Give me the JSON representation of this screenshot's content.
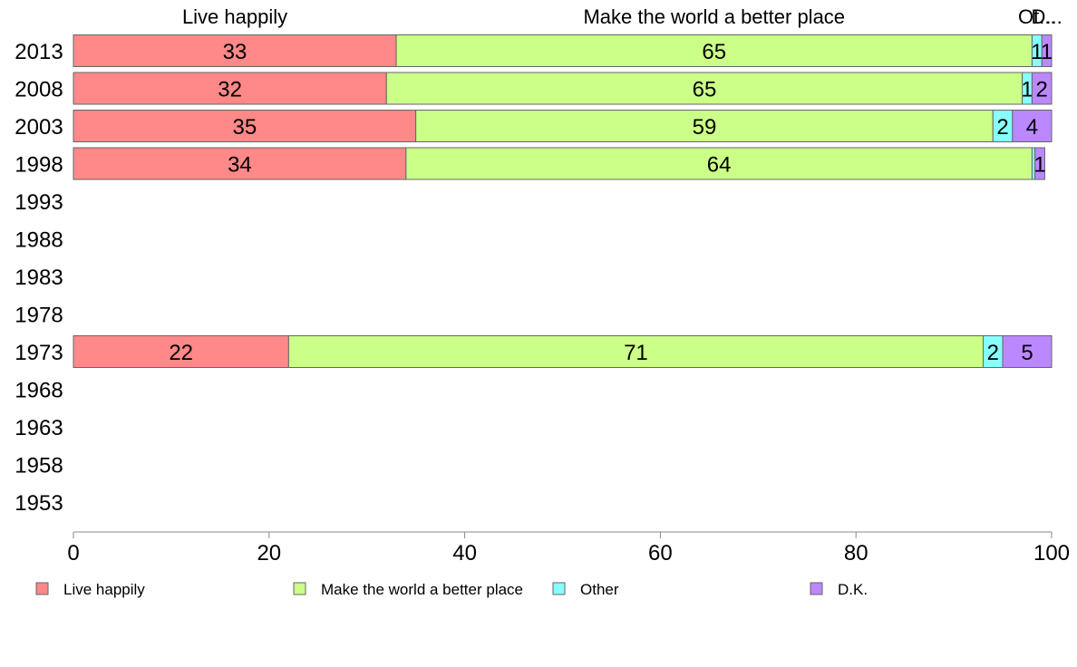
{
  "chart_data": {
    "type": "bar",
    "orientation": "horizontal",
    "stacked": true,
    "categories": [
      "2013",
      "2008",
      "2003",
      "1998",
      "1993",
      "1988",
      "1983",
      "1978",
      "1973",
      "1968",
      "1963",
      "1958",
      "1953"
    ],
    "series": [
      {
        "name": "Live happily",
        "color": "#ff8888",
        "values": [
          33,
          32,
          35,
          34,
          null,
          null,
          null,
          null,
          22,
          null,
          null,
          null,
          null
        ],
        "labels": [
          "33",
          "32",
          "35",
          "34",
          "",
          "",
          "",
          "",
          "22",
          "",
          "",
          "",
          ""
        ]
      },
      {
        "name": "Make the world a better place",
        "color": "#ccff88",
        "values": [
          65,
          65,
          59,
          64,
          null,
          null,
          null,
          null,
          71,
          null,
          null,
          null,
          null
        ],
        "labels": [
          "65",
          "65",
          "59",
          "64",
          "",
          "",
          "",
          "",
          "71",
          "",
          "",
          "",
          ""
        ]
      },
      {
        "name": "Other",
        "color": "#88ffff",
        "values": [
          1,
          1,
          2,
          0.3,
          null,
          null,
          null,
          null,
          2,
          null,
          null,
          null,
          null
        ],
        "labels": [
          "1",
          "1",
          "2",
          "",
          "",
          "",
          "",
          "",
          "2",
          "",
          "",
          "",
          ""
        ]
      },
      {
        "name": "D.K.",
        "color": "#bb88ff",
        "values": [
          1,
          2,
          4,
          1,
          null,
          null,
          null,
          null,
          5,
          null,
          null,
          null,
          null
        ],
        "labels": [
          "1",
          "2",
          "4",
          "1",
          "",
          "",
          "",
          "",
          "5",
          "",
          "",
          "",
          ""
        ]
      }
    ],
    "header_labels": [
      "Live happily",
      "Make the world a better place",
      "Ot...",
      "D..."
    ],
    "xlim": [
      0,
      100
    ],
    "xticks": [
      "0",
      "20",
      "40",
      "60",
      "80",
      "100"
    ],
    "legend_position": "bottom",
    "grid": false
  }
}
